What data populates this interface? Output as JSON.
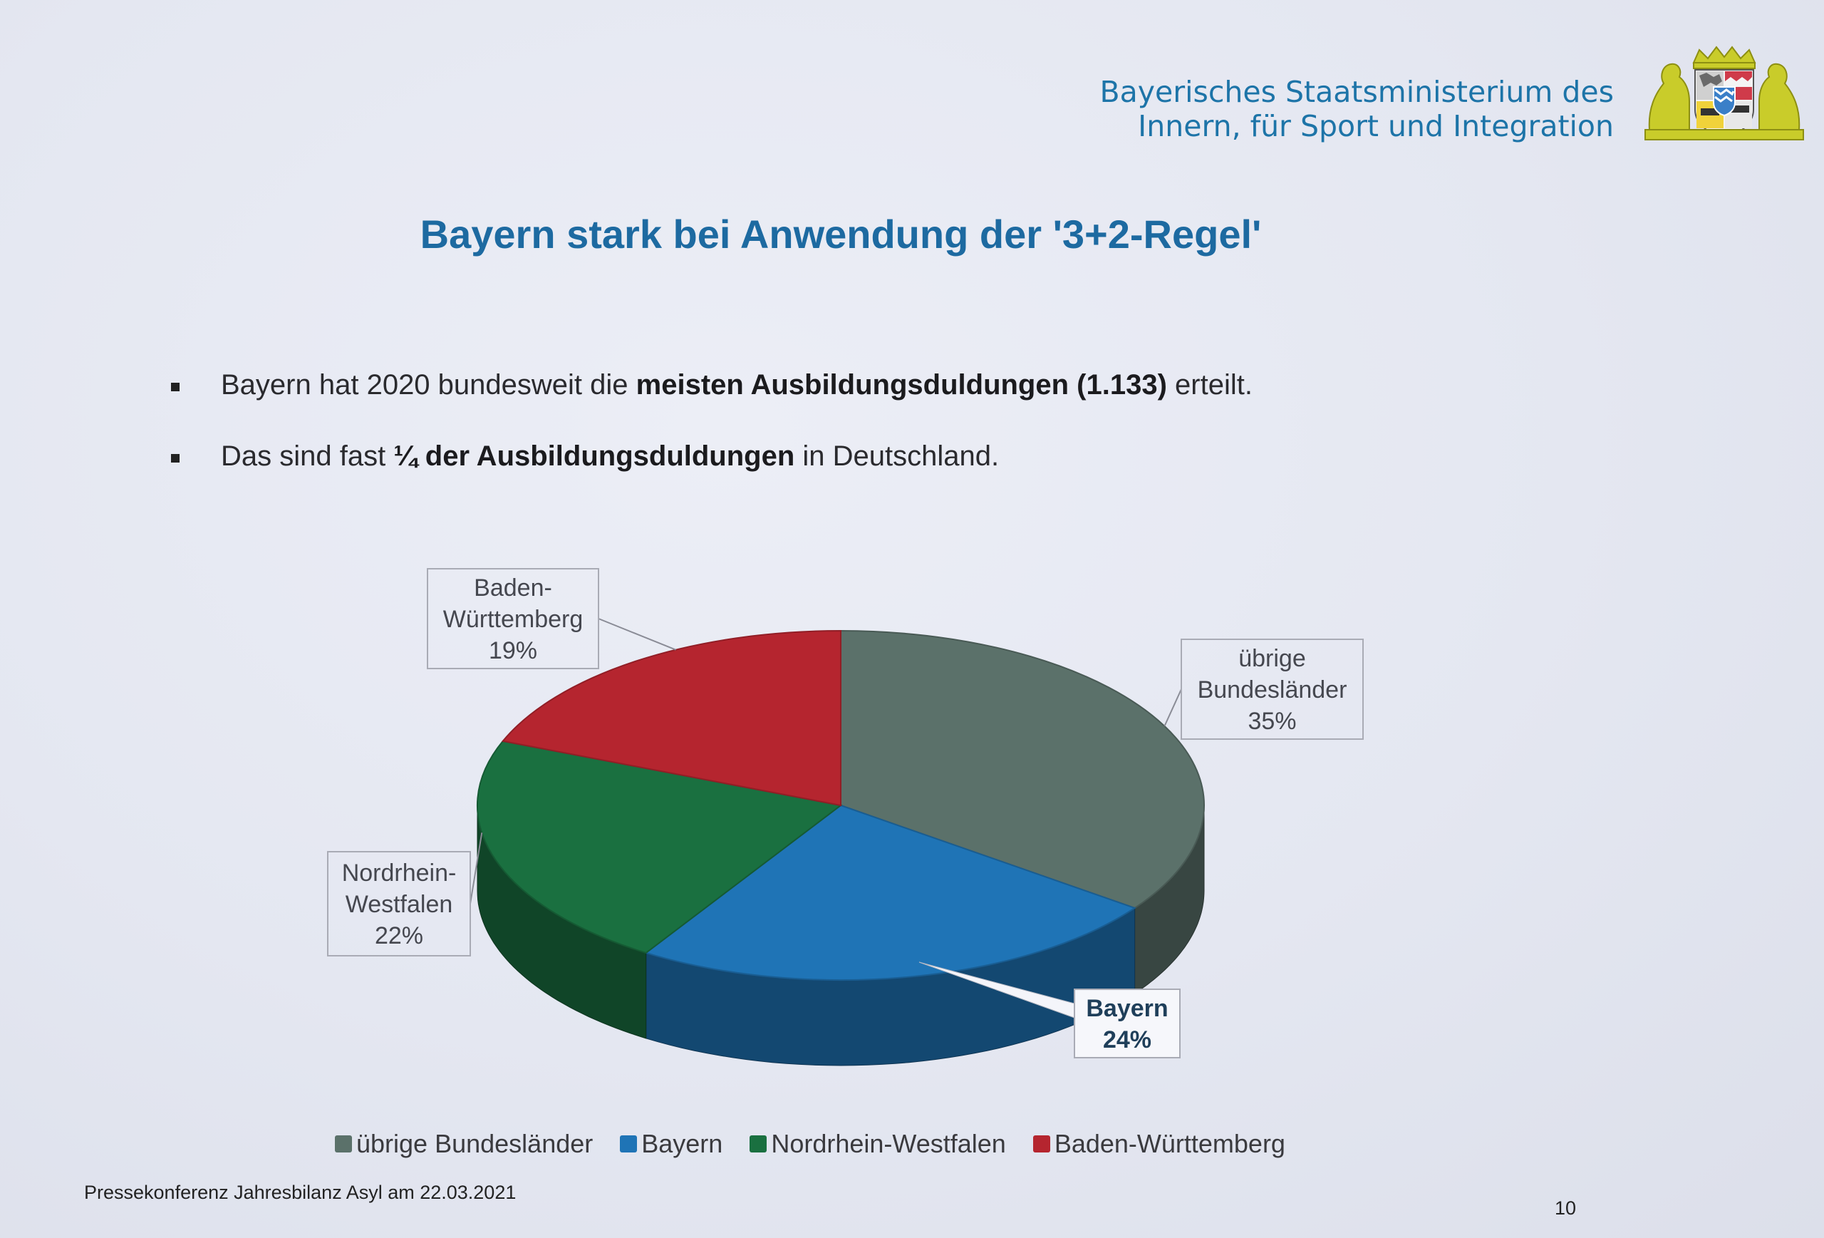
{
  "header": {
    "ministry_line1": "Bayerisches Staatsministerium des",
    "ministry_line2": "Innern, für Sport und Integration"
  },
  "title": "Bayern stark bei Anwendung der '3+2-Regel'",
  "bullets": [
    {
      "pre": "Bayern hat 2020 bundesweit die ",
      "bold": "meisten Ausbildungsduldungen (1.133)",
      "post": " erteilt."
    },
    {
      "pre": "Das sind fast ",
      "bold": "¼ der Ausbildungsduldungen",
      "post": " in Deutschland."
    }
  ],
  "chart_data": {
    "type": "pie",
    "title": "",
    "three_d": true,
    "slices": [
      {
        "label": "übrige Bundesländer",
        "callout": [
          "übrige",
          "Bundesländer",
          "35%"
        ],
        "value": 35,
        "color": "#5b716a"
      },
      {
        "label": "Bayern",
        "callout": [
          "Bayern",
          "24%"
        ],
        "value": 24,
        "color": "#1f74b6"
      },
      {
        "label": "Nordrhein-Westfalen",
        "callout": [
          "Nordrhein-",
          "Westfalen",
          "22%"
        ],
        "value": 22,
        "color": "#1a7040"
      },
      {
        "label": "Baden-Württemberg",
        "callout": [
          "Baden-",
          "Württemberg",
          "19%"
        ],
        "value": 19,
        "color": "#b5252f"
      }
    ],
    "legend_position": "bottom"
  },
  "footer": {
    "left": "Pressekonferenz Jahresbilanz Asyl am 22.03.2021",
    "page_number": "10"
  },
  "colors": {
    "brand_blue": "#1d74a8",
    "crest_gold": "#c9cc2a"
  }
}
